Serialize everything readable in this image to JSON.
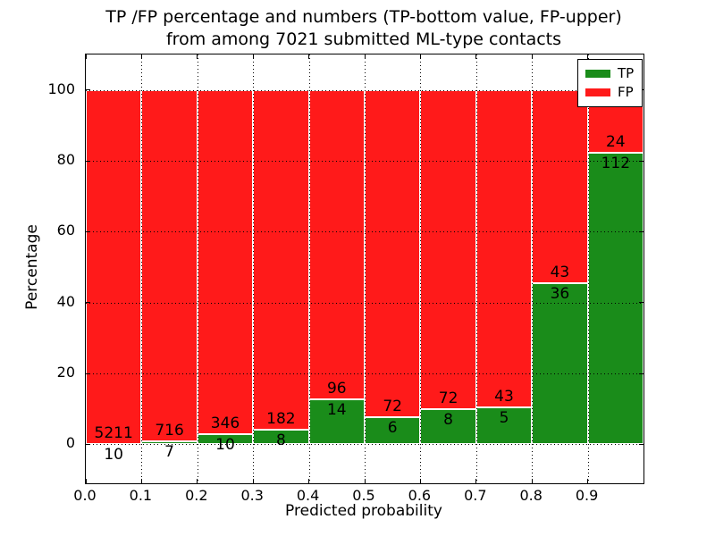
{
  "header": {
    "title_line1": "TP /FP percentage and numbers (TP-bottom value, FP-upper)",
    "title_line2": "from among 7021 submitted ML-type contacts"
  },
  "legend": {
    "entries": [
      {
        "label": "TP",
        "color": "#1a8c1a"
      },
      {
        "label": "FP",
        "color": "#ff1a1a"
      }
    ]
  },
  "chart_data": {
    "type": "bar",
    "mode": "stacked-percentage",
    "title": "TP /FP percentage and numbers (TP-bottom value, FP-upper) from among 7021 submitted ML-type contacts",
    "xlabel": "Predicted probability",
    "ylabel": "Percentage",
    "xlim": [
      0.0,
      1.0
    ],
    "ylim": [
      -11,
      110
    ],
    "bin_width": 0.1,
    "categories": [
      "0.0-0.1",
      "0.1-0.2",
      "0.2-0.3",
      "0.3-0.4",
      "0.4-0.5",
      "0.5-0.6",
      "0.6-0.7",
      "0.7-0.8",
      "0.8-0.9",
      "0.9-1.0"
    ],
    "series": [
      {
        "name": "TP",
        "color": "#1a8c1a",
        "counts": [
          10,
          7,
          10,
          8,
          14,
          6,
          8,
          5,
          36,
          112
        ]
      },
      {
        "name": "FP",
        "color": "#ff1a1a",
        "counts": [
          5211,
          716,
          346,
          182,
          96,
          72,
          72,
          43,
          43,
          24
        ]
      }
    ],
    "tp_percent": [
      0.19,
      0.97,
      2.81,
      4.21,
      12.73,
      7.69,
      10.0,
      10.42,
      45.57,
      82.35
    ],
    "xticks": [
      {
        "v": 0.0,
        "label": "0.0"
      },
      {
        "v": 0.1,
        "label": "0.1"
      },
      {
        "v": 0.2,
        "label": "0.2"
      },
      {
        "v": 0.3,
        "label": "0.3"
      },
      {
        "v": 0.4,
        "label": "0.4"
      },
      {
        "v": 0.5,
        "label": "0.5"
      },
      {
        "v": 0.6,
        "label": "0.6"
      },
      {
        "v": 0.7,
        "label": "0.7"
      },
      {
        "v": 0.8,
        "label": "0.8"
      },
      {
        "v": 0.9,
        "label": "0.9"
      }
    ],
    "yticks": [
      {
        "v": 0,
        "label": "0"
      },
      {
        "v": 20,
        "label": "20"
      },
      {
        "v": 40,
        "label": "40"
      },
      {
        "v": 60,
        "label": "60"
      },
      {
        "v": 80,
        "label": "80"
      },
      {
        "v": 100,
        "label": "100"
      }
    ],
    "grid": "dotted black, drawn above bars",
    "legend_position": "upper right"
  }
}
